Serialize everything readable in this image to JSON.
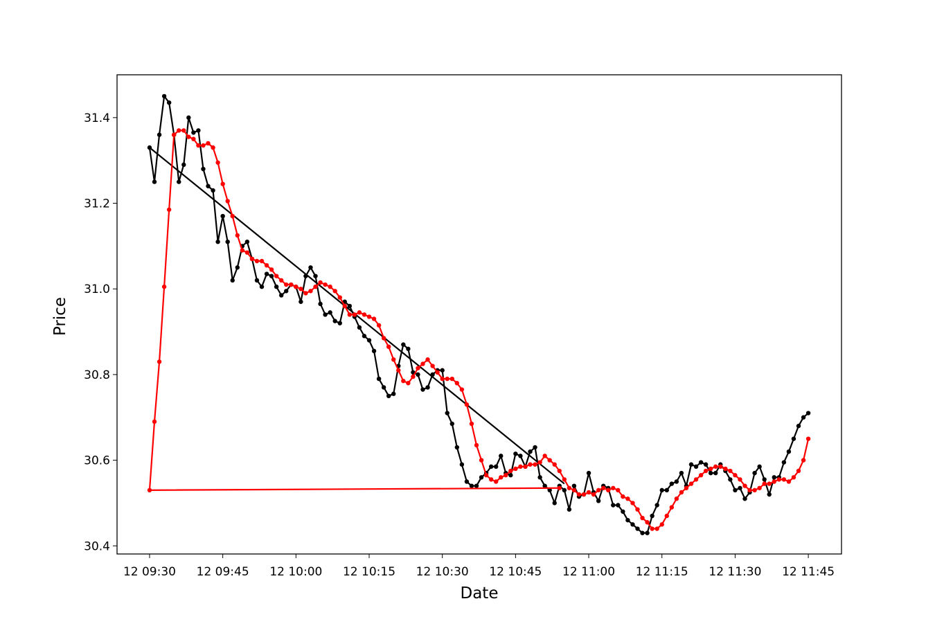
{
  "chart_data": {
    "type": "line",
    "x_label": "Date",
    "y_label": "Price",
    "x": [
      "12 09:30",
      "12 09:31",
      "12 09:32",
      "12 09:33",
      "12 09:34",
      "12 09:35",
      "12 09:36",
      "12 09:37",
      "12 09:38",
      "12 09:39",
      "12 09:40",
      "12 09:41",
      "12 09:42",
      "12 09:43",
      "12 09:44",
      "12 09:45",
      "12 09:46",
      "12 09:47",
      "12 09:48",
      "12 09:49",
      "12 09:50",
      "12 09:51",
      "12 09:52",
      "12 09:53",
      "12 09:54",
      "12 09:55",
      "12 09:56",
      "12 09:57",
      "12 09:58",
      "12 09:59",
      "12 10:00",
      "12 10:01",
      "12 10:02",
      "12 10:03",
      "12 10:04",
      "12 10:05",
      "12 10:06",
      "12 10:07",
      "12 10:08",
      "12 10:09",
      "12 10:10",
      "12 10:11",
      "12 10:12",
      "12 10:13",
      "12 10:14",
      "12 10:15",
      "12 10:16",
      "12 10:17",
      "12 10:18",
      "12 10:19",
      "12 10:20",
      "12 10:21",
      "12 10:22",
      "12 10:23",
      "12 10:24",
      "12 10:25",
      "12 10:26",
      "12 10:27",
      "12 10:28",
      "12 10:29",
      "12 10:30",
      "12 10:31",
      "12 10:32",
      "12 10:33",
      "12 10:34",
      "12 10:35",
      "12 10:36",
      "12 10:37",
      "12 10:38",
      "12 10:39",
      "12 10:40",
      "12 10:41",
      "12 10:42",
      "12 10:43",
      "12 10:44",
      "12 10:45",
      "12 10:46",
      "12 10:47",
      "12 10:48",
      "12 10:49",
      "12 10:50",
      "12 10:51",
      "12 10:52",
      "12 10:53",
      "12 10:54",
      "12 10:55",
      "12 10:56",
      "12 10:57",
      "12 10:58",
      "12 10:59",
      "12 11:00",
      "12 11:01",
      "12 11:02",
      "12 11:03",
      "12 11:04",
      "12 11:05",
      "12 11:06",
      "12 11:07",
      "12 11:08",
      "12 11:09",
      "12 11:10",
      "12 11:11",
      "12 11:12",
      "12 11:13",
      "12 11:14",
      "12 11:15",
      "12 11:16",
      "12 11:17",
      "12 11:18",
      "12 11:19",
      "12 11:20",
      "12 11:21",
      "12 11:22",
      "12 11:23",
      "12 11:24",
      "12 11:25",
      "12 11:26",
      "12 11:27",
      "12 11:28",
      "12 11:29",
      "12 11:30",
      "12 11:31",
      "12 11:32",
      "12 11:33",
      "12 11:34",
      "12 11:35",
      "12 11:36",
      "12 11:37",
      "12 11:38",
      "12 11:39",
      "12 11:40",
      "12 11:41",
      "12 11:42",
      "12 11:43",
      "12 11:44",
      "12 11:45"
    ],
    "series": [
      {
        "color": "#000000",
        "marker": "o",
        "values": [
          31.33,
          31.25,
          31.36,
          31.45,
          31.435,
          31.36,
          31.25,
          31.29,
          31.4,
          31.365,
          31.37,
          31.28,
          31.24,
          31.23,
          31.11,
          31.17,
          31.11,
          31.02,
          31.05,
          31.1,
          31.11,
          31.07,
          31.02,
          31.005,
          31.035,
          31.03,
          31.005,
          30.985,
          30.995,
          31.01,
          31.005,
          30.97,
          31.03,
          31.05,
          31.03,
          30.965,
          30.94,
          30.945,
          30.925,
          30.92,
          30.97,
          30.96,
          30.935,
          30.91,
          30.89,
          30.88,
          30.855,
          30.79,
          30.77,
          30.75,
          30.755,
          30.82,
          30.87,
          30.86,
          30.805,
          30.8,
          30.765,
          30.77,
          30.8,
          30.81,
          30.81,
          30.71,
          30.685,
          30.63,
          30.59,
          30.55,
          30.54,
          30.54,
          30.56,
          30.57,
          30.585,
          30.585,
          30.61,
          30.57,
          30.565,
          30.615,
          30.61,
          30.585,
          30.62,
          30.63,
          30.56,
          30.54,
          30.53,
          30.5,
          30.54,
          30.53,
          30.485,
          30.54,
          30.515,
          30.52,
          30.57,
          30.525,
          30.505,
          30.54,
          30.535,
          30.495,
          30.495,
          30.48,
          30.46,
          30.45,
          30.44,
          30.43,
          30.43,
          30.47,
          30.495,
          30.53,
          30.53,
          30.545,
          30.55,
          30.57,
          30.54,
          30.59,
          30.585,
          30.595,
          30.59,
          30.57,
          30.57,
          30.59,
          30.575,
          30.555,
          30.53,
          30.535,
          30.51,
          30.525,
          30.57,
          30.585,
          30.555,
          30.52,
          30.56,
          30.56,
          30.595,
          30.62,
          30.65,
          30.68,
          30.7,
          30.71
        ]
      },
      {
        "color": "#000000",
        "x": [
          "12 09:30",
          "12 10:55"
        ],
        "values": [
          31.33,
          30.545
        ]
      },
      {
        "color": "#ff0000",
        "marker": "o",
        "x": [
          "12 10:54",
          "12 09:30",
          "12 09:31",
          "12 09:32",
          "12 09:33",
          "12 09:34",
          "12 09:35",
          "12 09:36",
          "12 09:37",
          "12 09:38",
          "12 09:39",
          "12 09:40",
          "12 09:41",
          "12 09:42",
          "12 09:43",
          "12 09:44",
          "12 09:45",
          "12 09:46",
          "12 09:47",
          "12 09:48",
          "12 09:49",
          "12 09:50",
          "12 09:51",
          "12 09:52",
          "12 09:53",
          "12 09:54",
          "12 09:55",
          "12 09:56",
          "12 09:57",
          "12 09:58",
          "12 09:59",
          "12 10:00",
          "12 10:01",
          "12 10:02",
          "12 10:03",
          "12 10:04",
          "12 10:05",
          "12 10:06",
          "12 10:07",
          "12 10:08",
          "12 10:09",
          "12 10:10",
          "12 10:11",
          "12 10:12",
          "12 10:13",
          "12 10:14",
          "12 10:15",
          "12 10:16",
          "12 10:17",
          "12 10:18",
          "12 10:19",
          "12 10:20",
          "12 10:21",
          "12 10:22",
          "12 10:23",
          "12 10:24",
          "12 10:25",
          "12 10:26",
          "12 10:27",
          "12 10:28",
          "12 10:29",
          "12 10:30",
          "12 10:31",
          "12 10:32",
          "12 10:33",
          "12 10:34",
          "12 10:35",
          "12 10:36",
          "12 10:37",
          "12 10:38",
          "12 10:39",
          "12 10:40",
          "12 10:41",
          "12 10:42",
          "12 10:43",
          "12 10:44",
          "12 10:45",
          "12 10:46",
          "12 10:47",
          "12 10:48",
          "12 10:49",
          "12 10:50",
          "12 10:51",
          "12 10:52",
          "12 10:53",
          "12 10:54",
          "12 10:55",
          "12 10:56",
          "12 10:57",
          "12 10:58",
          "12 10:59",
          "12 11:00",
          "12 11:01",
          "12 11:02",
          "12 11:03",
          "12 11:04",
          "12 11:05",
          "12 11:06",
          "12 11:07",
          "12 11:08",
          "12 11:09",
          "12 11:10",
          "12 11:11",
          "12 11:12",
          "12 11:13",
          "12 11:14",
          "12 11:15",
          "12 11:16",
          "12 11:17",
          "12 11:18",
          "12 11:19",
          "12 11:20",
          "12 11:21",
          "12 11:22",
          "12 11:23",
          "12 11:24",
          "12 11:25",
          "12 11:26",
          "12 11:27",
          "12 11:28",
          "12 11:29",
          "12 11:30",
          "12 11:31",
          "12 11:32",
          "12 11:33",
          "12 11:34",
          "12 11:35",
          "12 11:36",
          "12 11:37",
          "12 11:38",
          "12 11:39",
          "12 11:40",
          "12 11:41",
          "12 11:42",
          "12 11:43",
          "12 11:44",
          "12 11:45"
        ],
        "values": [
          30.535,
          30.53,
          30.69,
          30.83,
          31.005,
          31.185,
          31.36,
          31.37,
          31.37,
          31.355,
          31.35,
          31.335,
          31.335,
          31.34,
          31.33,
          31.295,
          31.245,
          31.205,
          31.17,
          31.125,
          31.09,
          31.085,
          31.07,
          31.065,
          31.065,
          31.055,
          31.045,
          31.03,
          31.02,
          31.01,
          31.01,
          31.005,
          31.0,
          30.99,
          30.995,
          31.005,
          31.015,
          31.01,
          31.005,
          30.995,
          30.98,
          30.96,
          30.94,
          30.94,
          30.945,
          30.94,
          30.935,
          30.93,
          30.915,
          30.885,
          30.865,
          30.835,
          30.81,
          30.785,
          30.78,
          30.795,
          30.815,
          30.825,
          30.835,
          30.82,
          30.805,
          30.79,
          30.79,
          30.79,
          30.78,
          30.765,
          30.73,
          30.685,
          30.635,
          30.6,
          30.565,
          30.555,
          30.55,
          30.56,
          30.565,
          30.575,
          30.58,
          30.585,
          30.585,
          30.59,
          30.59,
          30.595,
          30.61,
          30.6,
          30.59,
          30.575,
          30.555,
          30.535,
          30.53,
          30.52,
          30.52,
          30.525,
          30.52,
          30.53,
          30.535,
          30.53,
          30.535,
          30.53,
          30.515,
          30.51,
          30.5,
          30.485,
          30.465,
          30.455,
          30.44,
          30.44,
          30.45,
          30.47,
          30.49,
          30.51,
          30.525,
          30.535,
          30.545,
          30.555,
          30.565,
          30.575,
          30.58,
          30.585,
          30.585,
          30.58,
          30.575,
          30.565,
          30.555,
          30.54,
          30.53,
          30.53,
          30.535,
          30.545,
          30.545,
          30.55,
          30.555,
          30.555,
          30.55,
          30.56,
          30.575,
          30.6,
          30.65
        ]
      }
    ],
    "xlim": [
      "12 09:23:20",
      "12 11:51:48"
    ],
    "xticks": [
      "12 09:30",
      "12 09:45",
      "12 10:00",
      "12 10:15",
      "12 10:30",
      "12 10:45",
      "12 11:00",
      "12 11:15",
      "12 11:30",
      "12 11:45"
    ],
    "ylim": [
      30.381,
      31.5
    ],
    "yticks": [
      30.4,
      30.6,
      30.8,
      {
        "value": 31,
        "label": "31.0"
      },
      31.2,
      31.4
    ]
  }
}
